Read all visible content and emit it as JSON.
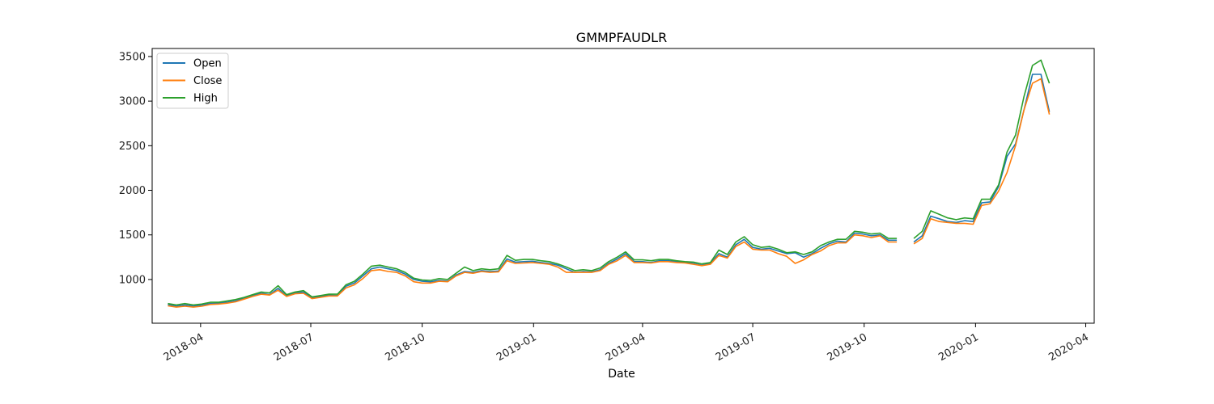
{
  "chart_data": {
    "type": "line",
    "title": "GMMPFAUDLR",
    "xlabel": "Date",
    "ylabel": "",
    "xlim": [
      "2018-02-20",
      "2020-04-08"
    ],
    "ylim": [
      510,
      3590
    ],
    "grid": false,
    "legend_position": "top-left",
    "x_ticks": [
      "2018-04-01",
      "2018-07-01",
      "2018-10-01",
      "2019-01-01",
      "2019-04-01",
      "2019-07-01",
      "2019-10-01",
      "2020-01-01",
      "2020-04-01"
    ],
    "x_tick_labels": [
      "2018-04",
      "2018-07",
      "2018-10",
      "2019-01",
      "2019-04",
      "2019-07",
      "2019-10",
      "2020-01",
      "2020-04"
    ],
    "y_ticks": [
      1000,
      1500,
      2000,
      2500,
      3000,
      3500
    ],
    "y_tick_labels": [
      "1000",
      "1500",
      "2000",
      "2500",
      "3000",
      "3500"
    ],
    "x": [
      "2018-03-05",
      "2018-03-12",
      "2018-03-19",
      "2018-03-26",
      "2018-04-02",
      "2018-04-09",
      "2018-04-16",
      "2018-04-23",
      "2018-04-30",
      "2018-05-07",
      "2018-05-14",
      "2018-05-21",
      "2018-05-28",
      "2018-06-04",
      "2018-06-11",
      "2018-06-18",
      "2018-06-25",
      "2018-07-02",
      "2018-07-09",
      "2018-07-16",
      "2018-07-23",
      "2018-07-30",
      "2018-08-06",
      "2018-08-13",
      "2018-08-20",
      "2018-08-27",
      "2018-09-03",
      "2018-09-10",
      "2018-09-17",
      "2018-09-24",
      "2018-10-01",
      "2018-10-08",
      "2018-10-15",
      "2018-10-22",
      "2018-10-29",
      "2018-11-05",
      "2018-11-12",
      "2018-11-19",
      "2018-11-26",
      "2018-12-03",
      "2018-12-10",
      "2018-12-17",
      "2018-12-24",
      "2018-12-31",
      "2019-01-07",
      "2019-01-14",
      "2019-01-21",
      "2019-01-28",
      "2019-02-04",
      "2019-02-11",
      "2019-02-18",
      "2019-02-25",
      "2019-03-04",
      "2019-03-11",
      "2019-03-18",
      "2019-03-25",
      "2019-04-01",
      "2019-04-08",
      "2019-04-15",
      "2019-04-22",
      "2019-04-29",
      "2019-05-06",
      "2019-05-13",
      "2019-05-20",
      "2019-05-27",
      "2019-06-03",
      "2019-06-10",
      "2019-06-17",
      "2019-06-24",
      "2019-07-01",
      "2019-07-08",
      "2019-07-15",
      "2019-07-22",
      "2019-07-29",
      "2019-08-05",
      "2019-08-12",
      "2019-08-19",
      "2019-08-26",
      "2019-09-02",
      "2019-09-09",
      "2019-09-16",
      "2019-09-23",
      "2019-09-30",
      "2019-10-07",
      "2019-10-14",
      "2019-10-21",
      "2019-10-28",
      "2019-11-04",
      "2019-11-11",
      "2019-11-18",
      "2019-11-25",
      "2019-12-02",
      "2019-12-09",
      "2019-12-16",
      "2019-12-23",
      "2019-12-30",
      "2020-01-06",
      "2020-01-13",
      "2020-01-20",
      "2020-01-27",
      "2020-02-03",
      "2020-02-10",
      "2020-02-17",
      "2020-02-24",
      "2020-03-02"
    ],
    "series": [
      {
        "name": "Open",
        "color": "#1f77b4",
        "values": [
          720,
          700,
          715,
          700,
          715,
          730,
          735,
          745,
          760,
          790,
          820,
          845,
          830,
          900,
          815,
          850,
          860,
          795,
          810,
          825,
          820,
          925,
          960,
          1040,
          1120,
          1140,
          1120,
          1100,
          1060,
          1000,
          980,
          975,
          990,
          980,
          1050,
          1090,
          1080,
          1100,
          1090,
          1095,
          1230,
          1195,
          1200,
          1205,
          1190,
          1180,
          1160,
          1120,
          1080,
          1090,
          1085,
          1110,
          1180,
          1230,
          1290,
          1200,
          1200,
          1190,
          1210,
          1210,
          1200,
          1190,
          1180,
          1160,
          1180,
          1290,
          1250,
          1390,
          1450,
          1360,
          1340,
          1350,
          1320,
          1290,
          1300,
          1250,
          1290,
          1350,
          1400,
          1430,
          1420,
          1520,
          1510,
          1490,
          1500,
          1440,
          1440,
          null,
          1420,
          1490,
          1710,
          1680,
          1650,
          1640,
          1660,
          1650,
          1860,
          1870,
          2040,
          2380,
          2520,
          2900,
          3300,
          3300,
          2880
        ]
      },
      {
        "name": "Close",
        "color": "#ff7f0e",
        "values": [
          705,
          690,
          700,
          690,
          700,
          720,
          725,
          735,
          750,
          780,
          810,
          835,
          825,
          880,
          810,
          840,
          845,
          785,
          800,
          815,
          815,
          905,
          940,
          1010,
          1100,
          1110,
          1090,
          1080,
          1040,
          975,
          960,
          960,
          980,
          975,
          1040,
          1080,
          1070,
          1090,
          1080,
          1085,
          1210,
          1180,
          1185,
          1190,
          1180,
          1170,
          1140,
          1080,
          1080,
          1080,
          1080,
          1100,
          1170,
          1210,
          1270,
          1190,
          1190,
          1185,
          1200,
          1200,
          1190,
          1185,
          1170,
          1155,
          1170,
          1270,
          1240,
          1370,
          1420,
          1340,
          1330,
          1330,
          1290,
          1260,
          1180,
          1220,
          1280,
          1320,
          1380,
          1410,
          1410,
          1500,
          1490,
          1470,
          1490,
          1420,
          1420,
          null,
          1400,
          1460,
          1680,
          1650,
          1640,
          1630,
          1630,
          1620,
          1830,
          1850,
          1990,
          2200,
          2500,
          2900,
          3200,
          3250,
          2850
        ]
      },
      {
        "name": "High",
        "color": "#2ca02c",
        "values": [
          730,
          715,
          730,
          715,
          725,
          745,
          745,
          760,
          775,
          800,
          830,
          860,
          850,
          930,
          830,
          860,
          875,
          805,
          820,
          835,
          835,
          940,
          980,
          1060,
          1150,
          1160,
          1140,
          1120,
          1080,
          1015,
          995,
          990,
          1010,
          1000,
          1070,
          1140,
          1100,
          1120,
          1110,
          1120,
          1270,
          1215,
          1225,
          1225,
          1210,
          1200,
          1175,
          1140,
          1100,
          1110,
          1100,
          1130,
          1200,
          1250,
          1310,
          1220,
          1220,
          1210,
          1225,
          1225,
          1210,
          1200,
          1195,
          1175,
          1190,
          1330,
          1280,
          1420,
          1480,
          1390,
          1360,
          1370,
          1340,
          1300,
          1310,
          1280,
          1310,
          1380,
          1420,
          1450,
          1450,
          1540,
          1530,
          1510,
          1520,
          1460,
          1460,
          null,
          1460,
          1540,
          1770,
          1730,
          1690,
          1670,
          1690,
          1680,
          1900,
          1900,
          2060,
          2430,
          2620,
          3050,
          3400,
          3460,
          3200
        ]
      }
    ]
  }
}
